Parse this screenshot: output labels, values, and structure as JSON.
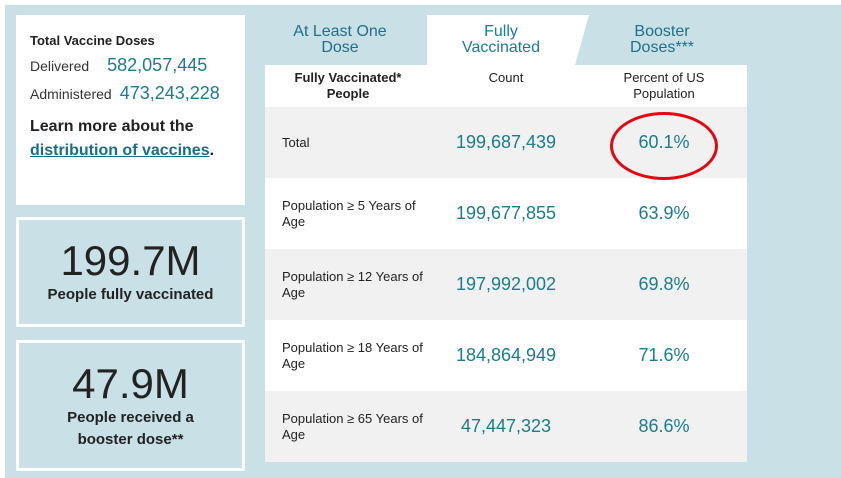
{
  "doses": {
    "title": "Total Vaccine Doses",
    "delivered_label": "Delivered",
    "delivered_value": "582,057,445",
    "administered_label": "Administered",
    "administered_value": "473,243,228",
    "learn_prefix": "Learn more about the",
    "learn_link": "distribution of vaccines",
    "learn_suffix": "."
  },
  "stats": [
    {
      "value": "199.7M",
      "label": "People fully vaccinated"
    },
    {
      "value": "47.9M",
      "label": "People received a booster dose**"
    }
  ],
  "tabs": [
    {
      "label": "At Least One Dose",
      "line1": "At Least One",
      "line2": "Dose",
      "active": false
    },
    {
      "label": "Fully Vaccinated",
      "line1": "Fully",
      "line2": "Vaccinated",
      "active": true
    },
    {
      "label": "Booster Doses***",
      "line1": "Booster",
      "line2": "Doses***",
      "active": false
    }
  ],
  "table": {
    "headers": {
      "col1_line1": "Fully Vaccinated*",
      "col1_line2": "People",
      "col2": "Count",
      "col3_line1": "Percent of US",
      "col3_line2": "Population"
    },
    "rows": [
      {
        "label": "Total",
        "count": "199,687,439",
        "percent": "60.1%"
      },
      {
        "label": "Population ≥ 5 Years of Age",
        "count": "199,677,855",
        "percent": "63.9%"
      },
      {
        "label": "Population ≥ 12 Years of Age",
        "count": "197,992,002",
        "percent": "69.8%"
      },
      {
        "label": "Population ≥ 18 Years of Age",
        "count": "184,864,949",
        "percent": "71.6%"
      },
      {
        "label": "Population ≥ 65 Years of Age",
        "count": "47,447,323",
        "percent": "86.6%"
      }
    ]
  },
  "annotation": {
    "highlighted_cell": "60.1%",
    "color": "#e30613"
  }
}
